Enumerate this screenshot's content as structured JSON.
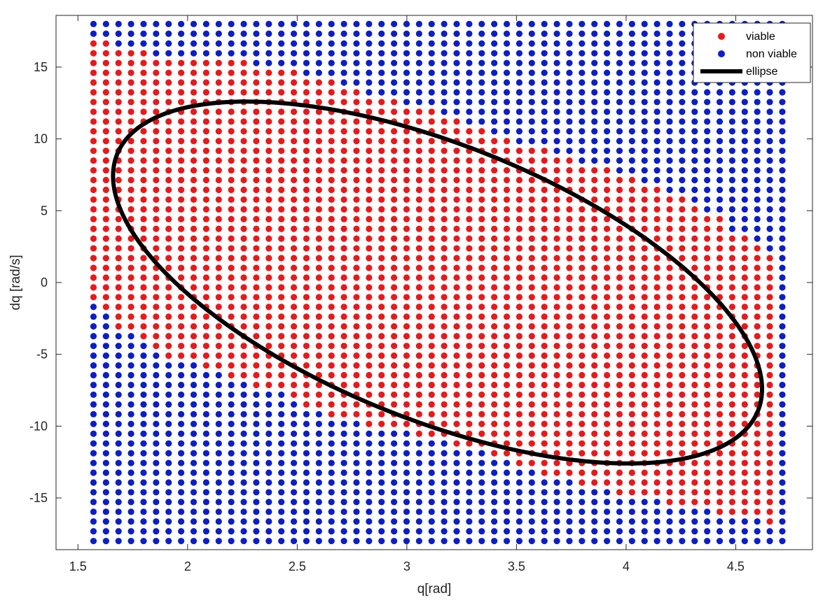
{
  "chart_data": {
    "type": "scatter",
    "title": "",
    "xlabel": "q[rad]",
    "ylabel": "dq [rad/s]",
    "xlim": [
      1.4,
      4.85
    ],
    "ylim": [
      -18.6,
      18.6
    ],
    "xticks": [
      1.5,
      2,
      2.5,
      3,
      3.5,
      4,
      4.5
    ],
    "yticks": [
      -15,
      -10,
      -5,
      0,
      5,
      10,
      15
    ],
    "xtick_labels": [
      "1.5",
      "2",
      "2.5",
      "3",
      "3.5",
      "4",
      "4.5"
    ],
    "ytick_labels": [
      "-15",
      "-10",
      "-5",
      "0",
      "5",
      "10",
      "15"
    ],
    "grid": false,
    "legend": "top-right",
    "grid_sampling": {
      "x_start": 1.5708,
      "x_end": 4.7124,
      "x_count": 56,
      "y_start": -18.0,
      "y_end": 18.0,
      "y_count": 54
    },
    "viable_region_boundary": {
      "upper": [
        [
          1.57,
          17.2
        ],
        [
          1.66,
          17.2
        ],
        [
          1.66,
          16.6
        ],
        [
          1.85,
          16.6
        ],
        [
          1.85,
          15.9
        ],
        [
          2.05,
          15.9
        ],
        [
          2.3,
          15.2
        ],
        [
          2.55,
          14.5
        ],
        [
          2.7,
          13.9
        ],
        [
          2.8,
          13.3
        ],
        [
          3.0,
          12.4
        ],
        [
          3.2,
          11.6
        ],
        [
          3.38,
          10.3
        ],
        [
          3.6,
          9.3
        ],
        [
          3.9,
          7.9
        ],
        [
          4.2,
          6.2
        ],
        [
          4.4,
          4.8
        ],
        [
          4.5,
          3.5
        ],
        [
          4.6,
          2.6
        ],
        [
          4.67,
          1.9
        ],
        [
          4.67,
          -18.0
        ]
      ],
      "lower": [
        [
          1.57,
          0.8
        ],
        [
          1.57,
          -1.2
        ],
        [
          1.62,
          -2.0
        ],
        [
          1.7,
          -3.3
        ],
        [
          1.85,
          -4.8
        ],
        [
          2.0,
          -5.5
        ],
        [
          2.15,
          -6.3
        ],
        [
          2.4,
          -7.6
        ],
        [
          2.6,
          -9.1
        ],
        [
          2.8,
          -9.8
        ],
        [
          3.0,
          -10.5
        ],
        [
          3.2,
          -11.3
        ],
        [
          3.45,
          -12.3
        ],
        [
          3.65,
          -13.5
        ],
        [
          3.9,
          -14.5
        ],
        [
          4.2,
          -15.3
        ],
        [
          4.4,
          -16.0
        ],
        [
          4.6,
          -16.6
        ],
        [
          4.67,
          -17.3
        ]
      ]
    },
    "series": [
      {
        "name": "viable",
        "marker": "filled circle",
        "color": "#e8191b"
      },
      {
        "name": "non viable",
        "marker": "filled circle",
        "color": "#0c1ec6"
      },
      {
        "name": "ellipse",
        "marker": "line",
        "color": "#000000",
        "center": [
          3.14,
          0.0
        ],
        "q_extent": [
          1.66,
          4.62
        ],
        "dq_extent": [
          -12.6,
          12.6
        ]
      }
    ]
  }
}
